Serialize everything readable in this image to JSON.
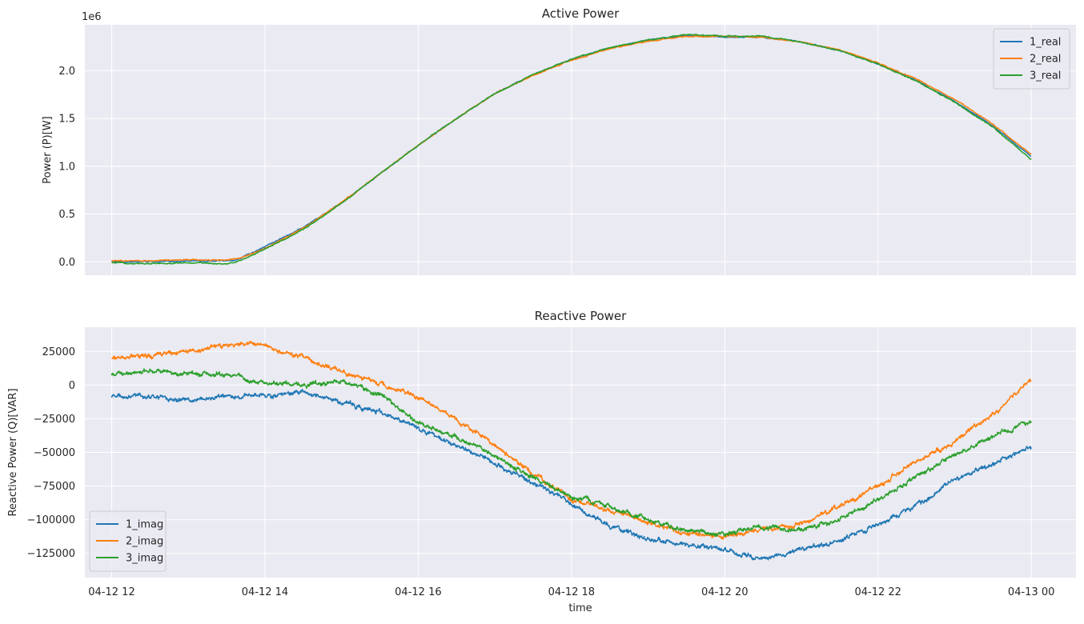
{
  "chart_data": [
    {
      "type": "line",
      "title": "Active Power",
      "ylabel": "Power (P)[W]",
      "xlabel": "",
      "offset_text": "1e6",
      "xlim": [
        "04-12 11:39",
        "04-13 00:35"
      ],
      "ylim": [
        -0.14,
        2.48
      ],
      "y_scale_note": "values in units of 1e6 W",
      "y_ticks": [
        0.0,
        0.5,
        1.0,
        1.5,
        2.0
      ],
      "y_tick_labels": [
        "0.0",
        "0.5",
        "1.0",
        "1.5",
        "2.0"
      ],
      "grid": true,
      "legend_position": "top-right",
      "x": [
        "04-12 12:00",
        "04-12 12:30",
        "04-12 13:00",
        "04-12 13:30",
        "04-12 13:38",
        "04-12 14:00",
        "04-12 14:30",
        "04-12 15:00",
        "04-12 15:30",
        "04-12 16:00",
        "04-12 16:30",
        "04-12 17:00",
        "04-12 17:30",
        "04-12 18:00",
        "04-12 18:30",
        "04-12 19:00",
        "04-12 19:30",
        "04-12 20:00",
        "04-12 20:30",
        "04-12 21:00",
        "04-12 21:30",
        "04-12 22:00",
        "04-12 22:30",
        "04-12 23:00",
        "04-12 23:30",
        "04-13 00:00"
      ],
      "series": [
        {
          "name": "1_real",
          "color": "#1f77b4",
          "values": [
            0.0,
            0.0,
            0.01,
            0.01,
            0.02,
            0.16,
            0.36,
            0.62,
            0.92,
            1.22,
            1.5,
            1.76,
            1.96,
            2.12,
            2.24,
            2.32,
            2.37,
            2.35,
            2.35,
            2.3,
            2.21,
            2.07,
            1.9,
            1.68,
            1.42,
            1.1
          ]
        },
        {
          "name": "2_real",
          "color": "#ff7f0e",
          "values": [
            0.01,
            0.01,
            0.02,
            0.02,
            0.03,
            0.14,
            0.35,
            0.62,
            0.92,
            1.22,
            1.5,
            1.76,
            1.95,
            2.11,
            2.23,
            2.31,
            2.36,
            2.36,
            2.35,
            2.3,
            2.22,
            2.08,
            1.91,
            1.7,
            1.44,
            1.12
          ]
        },
        {
          "name": "3_real",
          "color": "#2ca02c",
          "values": [
            -0.01,
            -0.02,
            -0.01,
            -0.02,
            0.0,
            0.13,
            0.34,
            0.61,
            0.92,
            1.22,
            1.5,
            1.76,
            1.96,
            2.12,
            2.24,
            2.32,
            2.38,
            2.36,
            2.36,
            2.3,
            2.21,
            2.07,
            1.89,
            1.67,
            1.41,
            1.07
          ]
        }
      ]
    },
    {
      "type": "line",
      "title": "Reactive Power",
      "ylabel": "Reactive Power (Q)[VAR]",
      "xlabel": "time",
      "xlim": [
        "04-12 11:39",
        "04-13 00:35"
      ],
      "ylim": [
        -143000,
        43000
      ],
      "y_ticks": [
        -125000,
        -100000,
        -75000,
        -50000,
        -25000,
        0,
        25000
      ],
      "y_tick_labels": [
        "−125000",
        "−100000",
        "−75000",
        "−50000",
        "−25000",
        "0",
        "25000"
      ],
      "x_ticks": [
        "04-12 12:00",
        "04-12 14:00",
        "04-12 16:00",
        "04-12 18:00",
        "04-12 20:00",
        "04-12 22:00",
        "04-13 00:00"
      ],
      "x_tick_labels": [
        "04-12 12",
        "04-12 14",
        "04-12 16",
        "04-12 18",
        "04-12 20",
        "04-12 22",
        "04-13 00"
      ],
      "grid": true,
      "legend_position": "bottom-left",
      "x": [
        "04-12 12:00",
        "04-12 12:30",
        "04-12 13:00",
        "04-12 13:30",
        "04-12 14:00",
        "04-12 14:30",
        "04-12 15:00",
        "04-12 15:30",
        "04-12 16:00",
        "04-12 16:30",
        "04-12 17:00",
        "04-12 17:30",
        "04-12 18:00",
        "04-12 18:30",
        "04-12 19:00",
        "04-12 19:30",
        "04-12 20:00",
        "04-12 20:30",
        "04-12 21:00",
        "04-12 21:30",
        "04-12 22:00",
        "04-12 22:30",
        "04-12 23:00",
        "04-12 23:30",
        "04-13 00:00"
      ],
      "series": [
        {
          "name": "1_imag",
          "color": "#1f77b4",
          "values": [
            -8000,
            -9000,
            -11000,
            -8000,
            -8000,
            -6000,
            -13000,
            -20000,
            -32000,
            -45000,
            -58000,
            -72000,
            -88000,
            -105000,
            -115000,
            -118000,
            -122000,
            -129000,
            -122000,
            -116000,
            -103000,
            -90000,
            -70000,
            -58000,
            -46000
          ]
        },
        {
          "name": "2_imag",
          "color": "#ff7f0e",
          "values": [
            20000,
            22000,
            25000,
            30000,
            30000,
            20000,
            10000,
            2000,
            -10000,
            -25000,
            -45000,
            -66000,
            -85000,
            -93000,
            -102000,
            -110000,
            -113000,
            -107000,
            -103000,
            -90000,
            -75000,
            -57000,
            -42000,
            -22000,
            5000
          ]
        },
        {
          "name": "3_imag",
          "color": "#2ca02c",
          "values": [
            9000,
            10000,
            9000,
            8000,
            2000,
            0,
            3000,
            -7000,
            -28000,
            -38000,
            -53000,
            -68000,
            -83000,
            -90000,
            -100000,
            -108000,
            -110000,
            -105000,
            -108000,
            -100000,
            -85000,
            -68000,
            -52000,
            -38000,
            -27000
          ]
        }
      ]
    }
  ]
}
